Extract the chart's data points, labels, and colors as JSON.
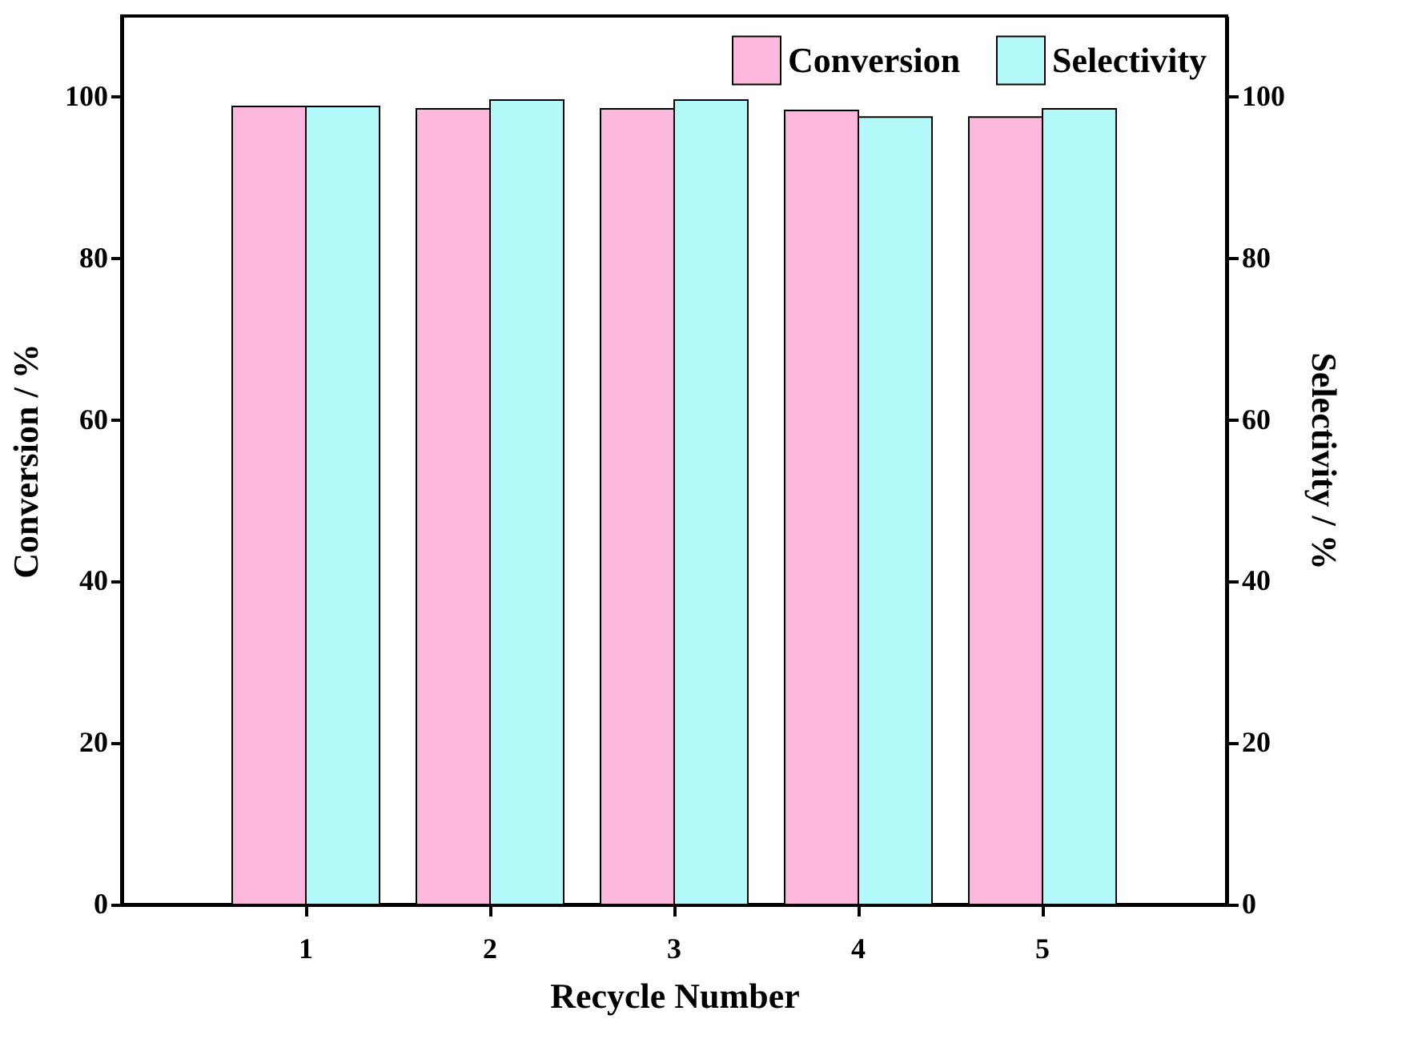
{
  "chart_data": {
    "type": "bar",
    "xlabel": "Recycle Number",
    "ylabel": "Conversion / %",
    "y2label": "Selectivity / %",
    "categories": [
      "1",
      "2",
      "3",
      "4",
      "5"
    ],
    "series": [
      {
        "name": "Conversion",
        "color": "#fbb8dc",
        "values": [
          98.8,
          98.5,
          98.5,
          98.3,
          97.5
        ]
      },
      {
        "name": "Selectivity",
        "color": "#b3f9fa",
        "axis": "y2",
        "values": [
          98.8,
          99.6,
          99.6,
          97.5,
          98.5
        ]
      }
    ],
    "ylim": [
      0,
      110
    ],
    "yticks": [
      0,
      20,
      40,
      60,
      80,
      100
    ],
    "y2lim": [
      0,
      110
    ],
    "y2ticks": [
      0,
      20,
      40,
      60,
      80,
      100
    ],
    "legend": "top right",
    "grid": false
  }
}
